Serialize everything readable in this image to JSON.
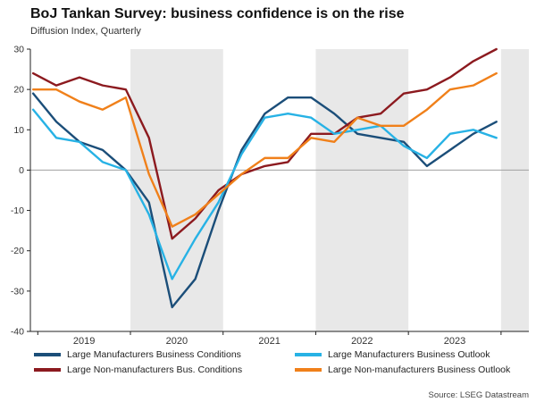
{
  "chart_data": {
    "type": "line",
    "title": "BoJ Tankan Survey: business confidence is on the rise",
    "subtitle": "Diffusion Index, Quarterly",
    "quarters": [
      "Dec-18",
      "Mar-19",
      "Jun-19",
      "Sep-19",
      "Dec-19",
      "Mar-20",
      "Jun-20",
      "Sep-20",
      "Dec-20",
      "Mar-21",
      "Jun-21",
      "Sep-21",
      "Dec-21",
      "Mar-22",
      "Jun-22",
      "Sep-22",
      "Dec-22",
      "Mar-23",
      "Jun-23",
      "Sep-23",
      "Dec-23"
    ],
    "x": [
      2018.95,
      2019.2,
      2019.45,
      2019.7,
      2019.95,
      2020.2,
      2020.45,
      2020.7,
      2020.95,
      2021.2,
      2021.45,
      2021.7,
      2021.95,
      2022.2,
      2022.45,
      2022.7,
      2022.95,
      2023.2,
      2023.45,
      2023.7,
      2023.95
    ],
    "xlim": [
      2018.92,
      2024.3
    ],
    "ylim": [
      -40,
      30
    ],
    "yticks": [
      30,
      20,
      10,
      0,
      -10,
      -20,
      -30,
      -40
    ],
    "year_ticks": [
      2019,
      2020,
      2021,
      2022,
      2023,
      2024
    ],
    "year_labels": [
      {
        "text": "2019",
        "pos": 2019.5
      },
      {
        "text": "2020",
        "pos": 2020.5
      },
      {
        "text": "2021",
        "pos": 2021.5
      },
      {
        "text": "2022",
        "pos": 2022.5
      },
      {
        "text": "2023",
        "pos": 2023.5
      }
    ],
    "shaded_bands": [
      [
        2020,
        2021
      ],
      [
        2022,
        2023
      ],
      [
        2024,
        2024.3
      ]
    ],
    "band_color": "#e8e8e8",
    "zero_line_color": "#a0a0a0",
    "axis_color": "#222222",
    "grid": false,
    "legend_position": "bottom",
    "series": [
      {
        "name": "Large Manufacturers Business Conditions",
        "color": "#1b4e79",
        "values": [
          19,
          12,
          7,
          5,
          0,
          -8,
          -34,
          -27,
          -10,
          5,
          14,
          18,
          18,
          14,
          9,
          8,
          7,
          1,
          5,
          9,
          12
        ]
      },
      {
        "name": "Large Non-manufacturers Bus. Conditions",
        "color": "#8c1a1f",
        "values": [
          24,
          21,
          23,
          21,
          20,
          8,
          -17,
          -12,
          -5,
          -1,
          1,
          2,
          9,
          9,
          13,
          14,
          19,
          20,
          23,
          27,
          30
        ]
      },
      {
        "name": "Large Manufacturers Business Outlook",
        "color": "#27b2e5",
        "values": [
          15,
          8,
          7,
          2,
          0,
          -11,
          -27,
          -17,
          -8,
          4,
          13,
          14,
          13,
          9,
          10,
          11,
          6,
          3,
          9,
          10,
          8
        ]
      },
      {
        "name": "Large Non-manufacturers Business Outlook",
        "color": "#f0801a",
        "values": [
          20,
          20,
          17,
          15,
          18,
          -1,
          -14,
          -11,
          -6,
          -1,
          3,
          3,
          8,
          7,
          13,
          11,
          11,
          15,
          20,
          21,
          24
        ]
      }
    ]
  },
  "source": "Source: LSEG Datastream"
}
